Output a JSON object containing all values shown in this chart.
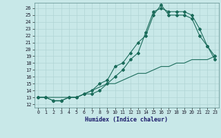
{
  "xlabel": "Humidex (Indice chaleur)",
  "bg_color": "#c8e8e8",
  "line_color": "#1a6b5a",
  "grid_color": "#b0d4d4",
  "xticks": [
    0,
    1,
    2,
    3,
    4,
    5,
    6,
    7,
    8,
    9,
    10,
    11,
    12,
    13,
    14,
    15,
    16,
    17,
    18,
    19,
    20,
    21,
    22,
    23
  ],
  "yticks": [
    12,
    13,
    14,
    15,
    16,
    17,
    18,
    19,
    20,
    21,
    22,
    23,
    24,
    25,
    26
  ],
  "xlim": [
    -0.5,
    23.5
  ],
  "ylim": [
    11.5,
    26.8
  ],
  "line1_x": [
    0,
    1,
    2,
    3,
    4,
    5,
    6,
    7,
    8,
    9,
    10,
    11,
    12,
    13,
    14,
    15,
    16,
    17,
    18,
    19,
    20,
    21,
    22,
    23
  ],
  "line1_y": [
    13,
    13,
    12.5,
    12.5,
    13,
    13,
    13.5,
    13.5,
    14,
    15,
    16,
    17,
    18.5,
    19.5,
    22.5,
    25.5,
    26,
    25.5,
    25.5,
    25.5,
    25,
    23,
    20.5,
    19
  ],
  "line2_x": [
    0,
    1,
    2,
    3,
    4,
    5,
    6,
    7,
    8,
    9,
    10,
    11,
    12,
    13,
    14,
    15,
    16,
    17,
    18,
    19,
    20,
    21,
    22,
    23
  ],
  "line2_y": [
    13,
    13,
    12.5,
    12.5,
    13,
    13,
    13.5,
    14,
    15,
    15.5,
    17.5,
    18,
    19.5,
    21,
    22,
    25,
    26.5,
    25,
    25,
    25,
    24.5,
    22,
    20.5,
    18.5
  ],
  "line3_x": [
    0,
    1,
    2,
    3,
    4,
    5,
    6,
    7,
    8,
    9,
    10,
    11,
    12,
    13,
    14,
    15,
    16,
    17,
    18,
    19,
    20,
    21,
    22,
    23
  ],
  "line3_y": [
    13,
    13,
    13,
    13,
    13,
    13,
    13.5,
    14,
    14.5,
    15,
    15,
    15.5,
    16,
    16.5,
    16.5,
    17,
    17.5,
    17.5,
    18,
    18,
    18.5,
    18.5,
    18.5,
    19
  ]
}
